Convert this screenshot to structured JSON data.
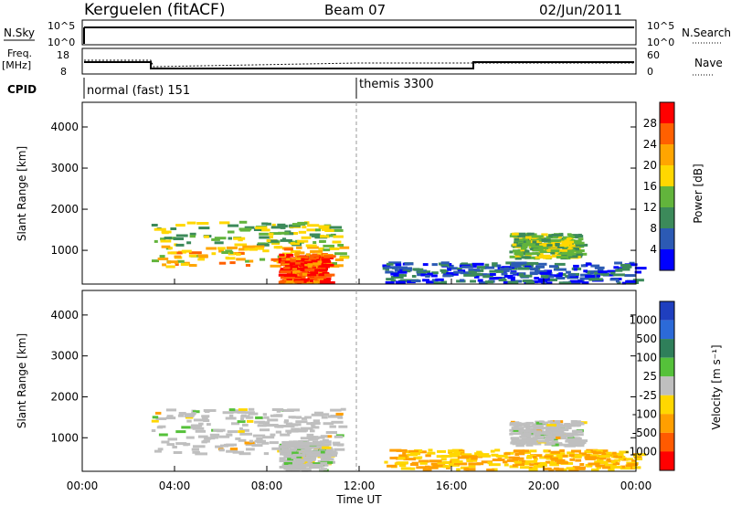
{
  "header": {
    "station": "Kerguelen (fitACF)",
    "beam": "Beam 07",
    "date": "02/Jun/2011"
  },
  "panels": {
    "nsky": {
      "label": "N.Sky",
      "ticks": [
        "10^5",
        "10^0"
      ]
    },
    "nsearch": {
      "label": "N.Search",
      "ticks": [
        "10^5",
        "10^0"
      ]
    },
    "freq": {
      "label_line1": "Freq.",
      "label_line2": "[MHz]",
      "ticks": [
        "18",
        "8"
      ]
    },
    "nave": {
      "label": "Nave",
      "ticks": [
        "60",
        "0"
      ]
    },
    "cpid": {
      "label": "CPID",
      "modes": [
        "normal (fast) 151",
        "themis 3300"
      ]
    }
  },
  "power_panel": {
    "ylabel": "Slant Range [km]",
    "yticks": [
      "1000",
      "2000",
      "3000",
      "4000"
    ],
    "colorbar_label": "Power [dB]",
    "colorbar_ticks": [
      "4",
      "8",
      "12",
      "16",
      "20",
      "24",
      "28"
    ],
    "colors": [
      "#0000ff",
      "#2c5ab4",
      "#3c8a5a",
      "#62b43c",
      "#ffd700",
      "#ffa500",
      "#ff6000",
      "#ff0000"
    ]
  },
  "velocity_panel": {
    "ylabel": "Slant Range [km]",
    "yticks": [
      "1000",
      "2000",
      "3000",
      "4000"
    ],
    "colorbar_label": "Velocity [m s⁻¹]",
    "colorbar_ticks": [
      "1000",
      "500",
      "100",
      "25",
      "-25",
      "-100",
      "-500",
      "-1000"
    ],
    "colors": [
      "#1f3fbf",
      "#2c6ad8",
      "#2f7f5a",
      "#55c13a",
      "#bfbfbf",
      "#ffd700",
      "#ff9f00",
      "#ff5a00",
      "#ff0000"
    ]
  },
  "xaxis": {
    "label": "Time UT",
    "ticks": [
      "00:00",
      "04:00",
      "08:00",
      "12:00",
      "16:00",
      "20:00",
      "00:00"
    ]
  },
  "chart_data": {
    "type": "heatmap",
    "x_range_hours": [
      0,
      24
    ],
    "y_range_km": [
      180,
      4600
    ],
    "cpid_switch_hour": 12,
    "frequency_mhz": {
      "x": [
        0,
        3,
        3.1,
        12,
        17,
        17.01,
        24
      ],
      "y": [
        13,
        13,
        10.5,
        10.5,
        10.5,
        12.5,
        12.5
      ]
    },
    "echo_regions": [
      {
        "t": [
          3,
          11.2
        ],
        "range_km": [
          600,
          1700
        ],
        "power_db": 14,
        "velocity": "-25..25"
      },
      {
        "t": [
          8.5,
          10.5
        ],
        "range_km": [
          200,
          900
        ],
        "power_db": 28,
        "velocity": "-25..25"
      },
      {
        "t": [
          13,
          24
        ],
        "range_km": [
          200,
          700
        ],
        "power_db": 6,
        "velocity": "-100..-25"
      },
      {
        "t": [
          18.5,
          21.5
        ],
        "range_km": [
          800,
          1400
        ],
        "power_db": 14,
        "velocity": "-25..25"
      }
    ]
  }
}
